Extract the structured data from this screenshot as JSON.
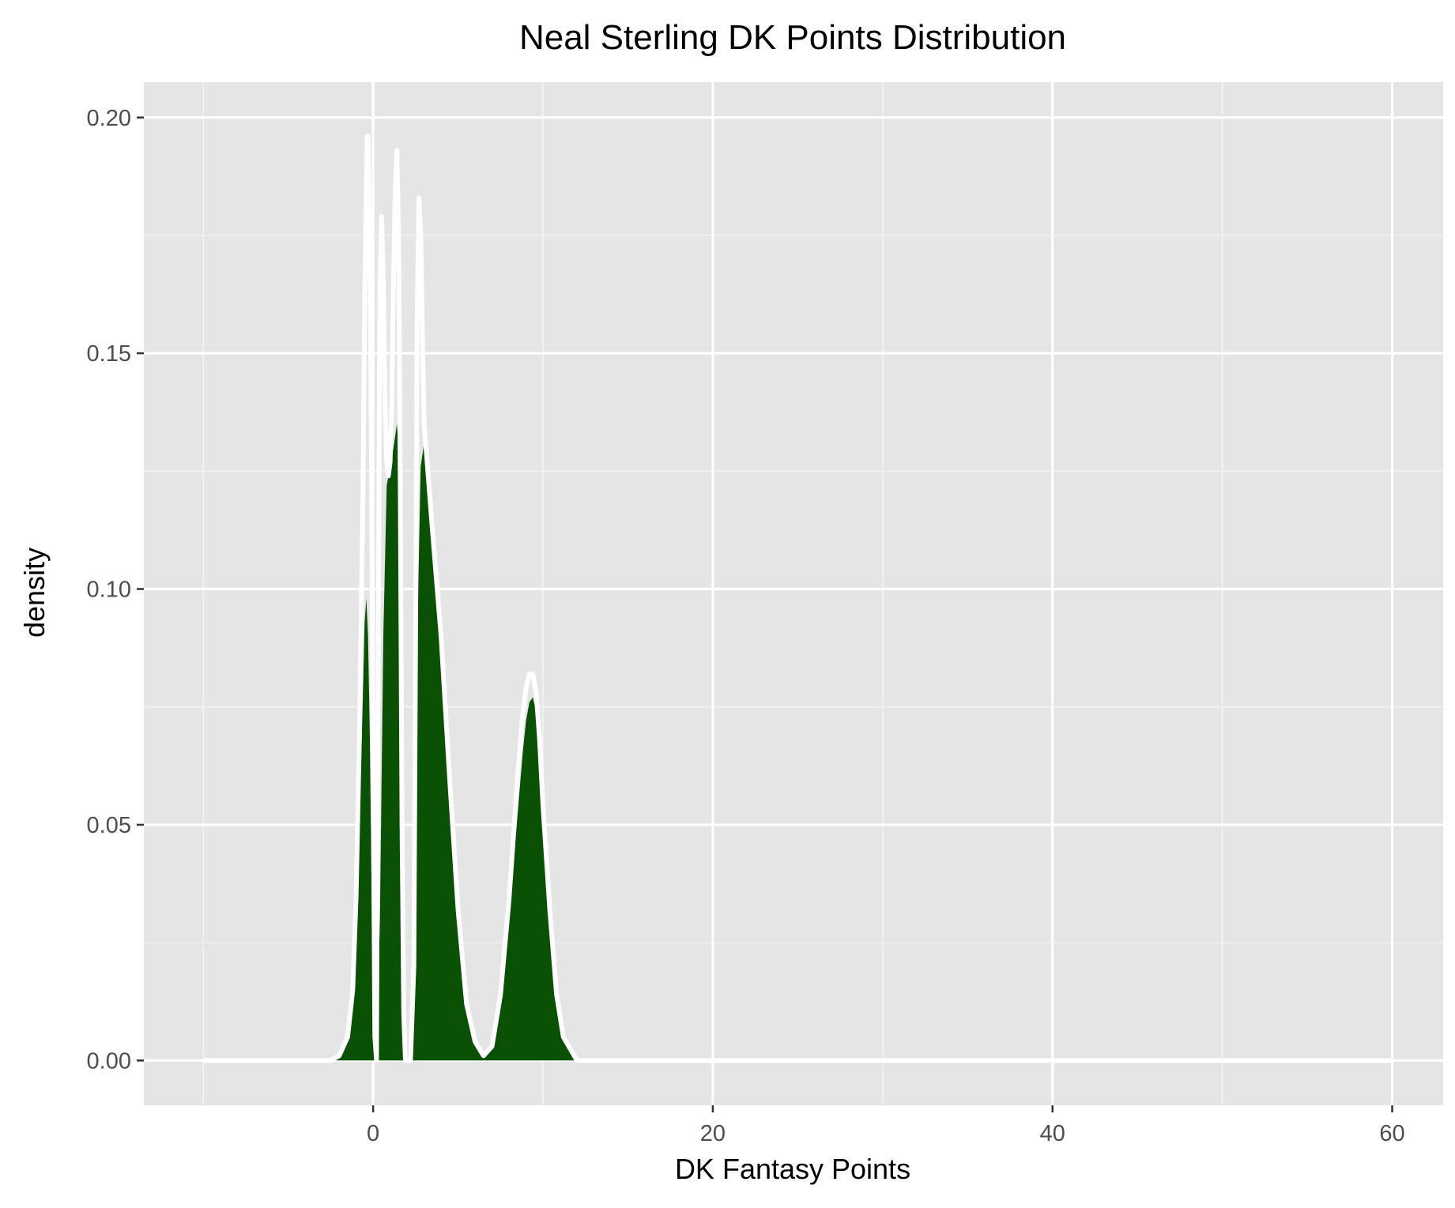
{
  "chart_data": {
    "type": "area",
    "title": "Neal Sterling DK Points Distribution",
    "xlabel": "DK Fantasy Points",
    "ylabel": "density",
    "xlim": [
      -13.5,
      63
    ],
    "ylim": [
      -0.0095,
      0.2075
    ],
    "x_ticks": [
      0,
      20,
      40,
      60
    ],
    "x_minor_ticks": [
      -10,
      10,
      30,
      50
    ],
    "y_ticks": [
      0.0,
      0.05,
      0.1,
      0.15,
      0.2
    ],
    "y_tick_labels": [
      "0.00",
      "0.05",
      "0.10",
      "0.15",
      "0.20"
    ],
    "y_minor_ticks": [
      0.025,
      0.075,
      0.125,
      0.175
    ],
    "grid": true,
    "series": [
      {
        "style": "filled density",
        "x": [
          -10,
          -2.5,
          -2.0,
          -1.5,
          -1.2,
          -1.0,
          -0.8,
          -0.6,
          -0.5,
          -0.4,
          -0.3,
          -0.2,
          -0.1,
          0.0,
          0.2,
          0.4,
          0.6,
          0.8,
          1.0,
          1.2,
          1.4,
          1.5,
          1.6,
          1.7,
          1.8,
          2.0,
          2.2,
          2.4,
          2.6,
          2.8,
          3.0,
          3.2,
          3.5,
          4.0,
          4.5,
          5.0,
          5.5,
          6.0,
          6.5,
          7.0,
          7.5,
          8.0,
          8.5,
          8.8,
          9.0,
          9.2,
          9.4,
          9.6,
          9.8,
          10.0,
          10.4,
          10.8,
          11.2,
          12.0,
          60
        ],
        "y": [
          0,
          0,
          0.001,
          0.005,
          0.012,
          0.025,
          0.05,
          0.078,
          0.093,
          0.098,
          0.09,
          0.07,
          0.04,
          0.012,
          0,
          0.03,
          0.09,
          0.122,
          0.126,
          0.13,
          0.135,
          0.13,
          0.09,
          0.05,
          0.02,
          0,
          0,
          0.03,
          0.09,
          0.126,
          0.131,
          0.126,
          0.112,
          0.09,
          0.06,
          0.032,
          0.012,
          0.004,
          0.001,
          0.003,
          0.012,
          0.03,
          0.052,
          0.065,
          0.072,
          0.076,
          0.077,
          0.074,
          0.065,
          0.052,
          0.03,
          0.012,
          0.004,
          0,
          0
        ],
        "color": "#0a5005"
      },
      {
        "style": "density outline",
        "x": [
          -10,
          -2.5,
          -2.0,
          -1.5,
          -1.2,
          -1.0,
          -0.8,
          -0.6,
          -0.5,
          -0.4,
          -0.35,
          -0.3,
          -0.2,
          -0.1,
          0.0,
          0.1,
          0.2,
          0.3,
          0.4,
          0.5,
          0.6,
          0.7,
          0.8,
          0.9,
          1.0,
          1.1,
          1.2,
          1.3,
          1.4,
          1.5,
          1.6,
          1.7,
          1.8,
          1.9,
          2.0,
          2.2,
          2.4,
          2.5,
          2.6,
          2.7,
          2.8,
          2.9,
          3.0,
          3.2,
          3.5,
          4.0,
          4.5,
          5.0,
          5.5,
          6.0,
          6.5,
          7.0,
          7.5,
          8.0,
          8.5,
          8.8,
          9.0,
          9.2,
          9.4,
          9.6,
          9.8,
          10.0,
          10.4,
          10.8,
          11.2,
          12.0,
          60
        ],
        "y": [
          0,
          0,
          0.001,
          0.005,
          0.015,
          0.035,
          0.07,
          0.12,
          0.16,
          0.185,
          0.196,
          0.196,
          0.175,
          0.13,
          0.06,
          0.005,
          0,
          0.09,
          0.165,
          0.179,
          0.165,
          0.14,
          0.127,
          0.124,
          0.127,
          0.14,
          0.165,
          0.185,
          0.193,
          0.175,
          0.12,
          0.05,
          0.01,
          0,
          0,
          0,
          0.02,
          0.09,
          0.16,
          0.183,
          0.176,
          0.155,
          0.135,
          0.126,
          0.112,
          0.09,
          0.06,
          0.032,
          0.012,
          0.004,
          0.001,
          0.003,
          0.014,
          0.034,
          0.06,
          0.073,
          0.079,
          0.082,
          0.082,
          0.078,
          0.068,
          0.054,
          0.032,
          0.014,
          0.005,
          0,
          0
        ],
        "color": "#ffffff"
      }
    ]
  }
}
